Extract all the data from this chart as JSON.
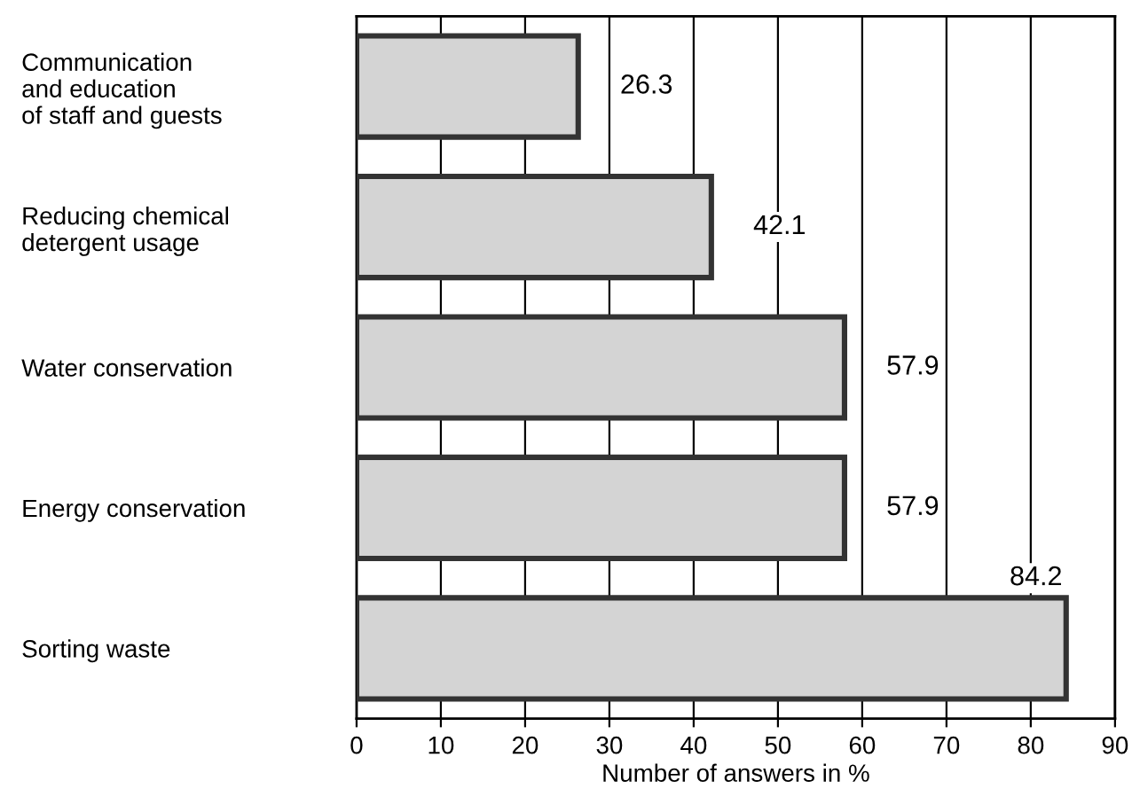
{
  "chart_data": {
    "type": "bar",
    "orientation": "horizontal",
    "categories": [
      "Communication\nand education\nof staff and guests",
      "Reducing chemical\ndetergent usage",
      "Water conservation",
      "Energy conservation",
      "Sorting waste"
    ],
    "values": [
      26.3,
      42.1,
      57.9,
      57.9,
      84.2
    ],
    "color": "#d4d4d4",
    "xlim": [
      0,
      90
    ],
    "xticks": [
      0,
      10,
      20,
      30,
      40,
      50,
      60,
      70,
      80,
      90
    ],
    "xlabel": "Number of answers in %",
    "grid": "x",
    "data_labels": true
  }
}
